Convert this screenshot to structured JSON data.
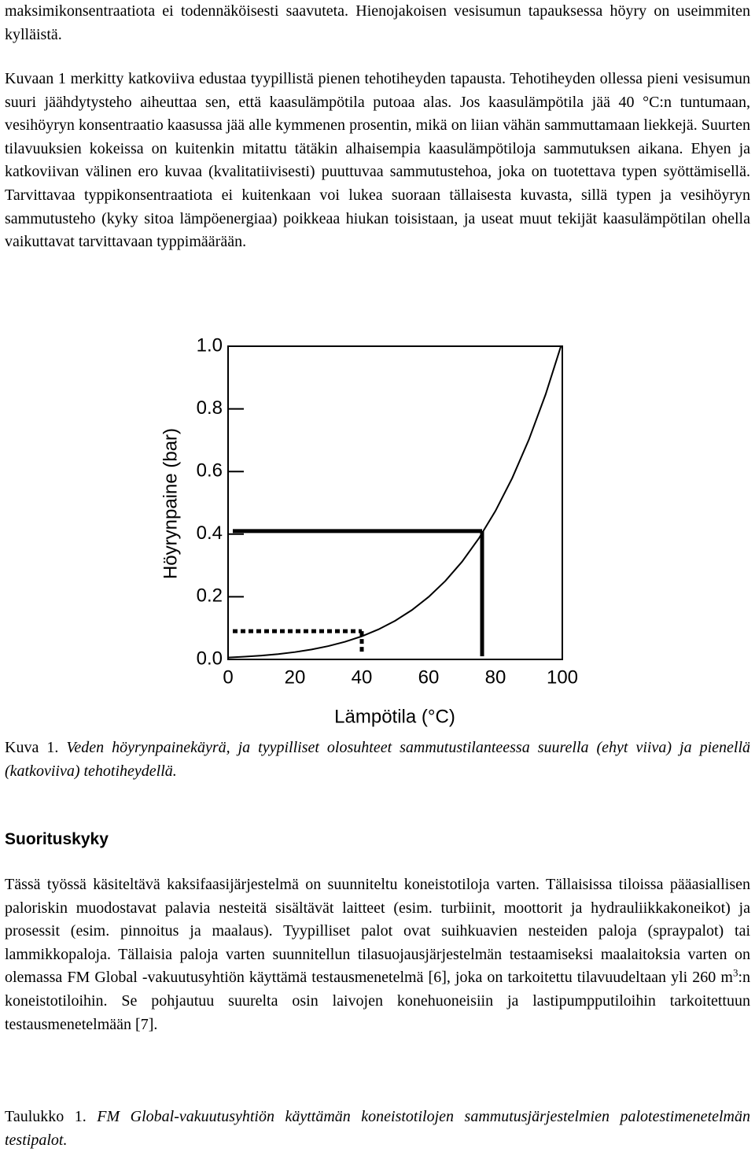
{
  "paragraphs": [
    "maksimikonsentraatiota ei todennäköisesti saavuteta. Hienojakoisen vesisumun tapauksessa höyry on useimmiten kylläistä.",
    "Kuvaan 1 merkitty katkoviiva edustaa tyypillistä pienen tehotiheyden tapausta. Tehotiheyden ollessa pieni vesisumun suuri jäähdytysteho aiheuttaa sen, että kaasulämpötila putoaa alas. Jos kaasulämpötila jää 40 °C:n tuntumaan, vesihöyryn konsentraatio kaasussa jää alle kymmenen prosentin, mikä on liian vähän sammuttamaan liekkejä. Suurten tilavuuksien kokeissa on kuitenkin mitattu tätäkin alhaisempia kaasulämpötiloja sammutuksen aikana. Ehyen ja katkoviivan välinen ero kuvaa (kvalitatiivisesti) puuttuvaa sammutustehoa, joka on tuotettava typen syöttämisellä. Tarvittavaa typpikonsentraatiota ei kuitenkaan voi lukea suoraan tällaisesta kuvasta, sillä typen ja vesihöyryn sammutusteho (kyky sitoa lämpöenergiaa) poikkeaa hiukan toisistaan, ja useat muut tekijät kaasulämpötilan ohella vaikuttavat tarvittavaan typpimäärään."
  ],
  "chart_data": {
    "type": "line",
    "x": [
      0,
      5,
      10,
      15,
      20,
      25,
      30,
      35,
      40,
      45,
      50,
      55,
      60,
      65,
      70,
      75,
      80,
      85,
      90,
      95,
      100
    ],
    "series": [
      {
        "color": "#000000",
        "values": [
          0.0061,
          0.0087,
          0.0123,
          0.0171,
          0.0234,
          0.0317,
          0.0425,
          0.0563,
          0.0738,
          0.0959,
          0.1235,
          0.1576,
          0.1995,
          0.2504,
          0.312,
          0.386,
          0.4741,
          0.5787,
          0.7018,
          0.8461,
          1.0142
        ]
      }
    ],
    "xlim": [
      0,
      100
    ],
    "ylim": [
      0,
      1
    ],
    "xticks": [
      0,
      20,
      40,
      60,
      80,
      100
    ],
    "yticks": [
      {
        "value": 0,
        "label": "0.0"
      },
      0.2,
      0.4,
      0.6,
      0.8,
      {
        "value": 1,
        "label": "1.0"
      }
    ],
    "x_label": "Lämpötila (°C)",
    "y_label": "Höyrynpaine (bar)",
    "reference_lines": [
      {
        "x": 76,
        "y": 0.41,
        "style": "solid"
      },
      {
        "x": 40,
        "y": 0.09,
        "style": "dashed"
      }
    ]
  },
  "figure_caption": {
    "label": "Kuva 1.",
    "text": "Veden höyrynpainekäyrä, ja tyypilliset olosuhteet sammutustilanteessa suurella (ehyt viiva) ja pienellä (katkoviiva) tehotiheydellä."
  },
  "heading": "Suorituskyky",
  "section_paragraph": {
    "before": "Tässä työssä käsiteltävä kaksifaasijärjestelmä on suunniteltu koneistotiloja varten. Tällaisissa tiloissa pääasiallisen paloriskin muodostavat palavia nesteitä sisältävät laitteet (esim. turbiinit, moottorit ja hydrauliikkakoneikot) ja prosessit (esim. pinnoitus ja maalaus). Tyypilliset palot ovat suihkuavien nesteiden paloja (spraypalot) tai lammikkopaloja. Tällaisia paloja varten suunnitellun tilasuojausjärjestelmän testaamiseksi maalaitoksia varten on olemassa FM Global -vakuutusyhtiön käyttämä testausmenetelmä [6], joka on tarkoitettu tilavuudeltaan yli 260 m",
    "superscript": "3",
    "after": ":n koneistotiloihin. Se pohjautuu suurelta osin laivojen konehuoneisiin ja lastipumpputiloihin tarkoitettuun testausmenetelmään [7]."
  },
  "table_caption": {
    "label": "Taulukko 1.",
    "text": "FM Global-vakuutusyhtiön käyttämän koneistotilojen sammutusjärjestelmien palotestimenetelmän testipalot."
  }
}
